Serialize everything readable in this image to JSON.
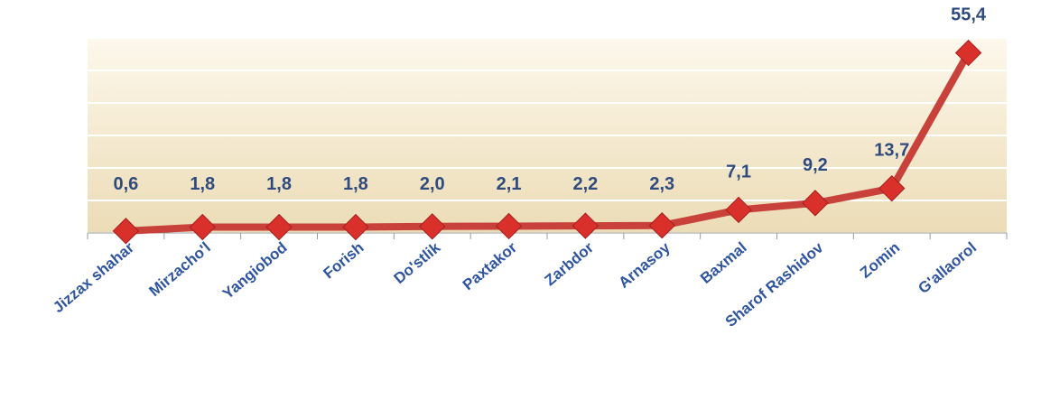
{
  "chart_data": {
    "type": "line",
    "categories": [
      "Jizzax shahar",
      "Mirzacho'l",
      "Yangiobod",
      "Forish",
      "Do'stlik",
      "Paxtakor",
      "Zarbdor",
      "Arnasoy",
      "Baxmal",
      "Sharof Rashidov",
      "Zomin",
      "G'allaorol"
    ],
    "values": [
      0.6,
      1.8,
      1.8,
      1.8,
      2.0,
      2.1,
      2.2,
      2.3,
      7.1,
      9.2,
      13.7,
      55.4
    ],
    "value_labels": [
      "0,6",
      "1,8",
      "1,8",
      "1,8",
      "2,0",
      "2,1",
      "2,2",
      "2,3",
      "7,1",
      "9,2",
      "13,7",
      "55,4"
    ],
    "color": "#c8413a",
    "ylim": [
      0,
      60
    ],
    "yticks": [
      0,
      10,
      20,
      30,
      40,
      50,
      60
    ],
    "grid": true
  }
}
